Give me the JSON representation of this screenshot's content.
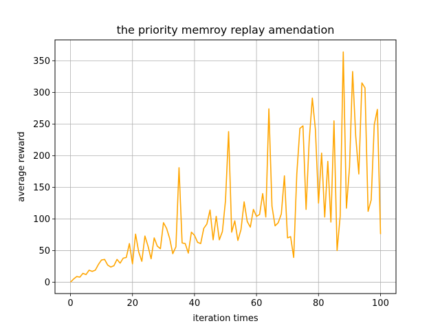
{
  "chart_data": {
    "type": "line",
    "title": "the priority memroy replay amendation",
    "xlabel": "iteration times",
    "ylabel": "average reward",
    "xlim": [
      -5,
      105
    ],
    "ylim": [
      -18,
      383
    ],
    "xticks": [
      0,
      20,
      40,
      60,
      80,
      100
    ],
    "yticks": [
      0,
      50,
      100,
      150,
      200,
      250,
      300,
      350
    ],
    "grid": true,
    "series": [
      {
        "color": "#ffa500",
        "x": [
          0,
          1,
          2,
          3,
          4,
          5,
          6,
          7,
          8,
          9,
          10,
          11,
          12,
          13,
          14,
          15,
          16,
          17,
          18,
          19,
          20,
          21,
          22,
          23,
          24,
          25,
          26,
          27,
          28,
          29,
          30,
          31,
          32,
          33,
          34,
          35,
          36,
          37,
          38,
          39,
          40,
          41,
          42,
          43,
          44,
          45,
          46,
          47,
          48,
          49,
          50,
          51,
          52,
          53,
          54,
          55,
          56,
          57,
          58,
          59,
          60,
          61,
          62,
          63,
          64,
          65,
          66,
          67,
          68,
          69,
          70,
          71,
          72,
          73,
          74,
          75,
          76,
          77,
          78,
          79,
          80,
          81,
          82,
          83,
          84,
          85,
          86,
          87,
          88,
          89,
          90,
          91,
          92,
          93,
          94,
          95,
          96,
          97,
          98,
          99,
          100
        ],
        "y": [
          0,
          5,
          9,
          8,
          14,
          12,
          19,
          17,
          19,
          28,
          35,
          36,
          27,
          24,
          26,
          36,
          30,
          38,
          39,
          61,
          29,
          76,
          48,
          33,
          73,
          57,
          37,
          70,
          57,
          53,
          94,
          85,
          69,
          45,
          56,
          181,
          62,
          61,
          46,
          79,
          74,
          63,
          61,
          85,
          92,
          114,
          67,
          104,
          67,
          80,
          129,
          238,
          79,
          97,
          66,
          83,
          127,
          96,
          87,
          115,
          104,
          107,
          140,
          103,
          274,
          120,
          89,
          94,
          108,
          168,
          70,
          72,
          39,
          171,
          243,
          247,
          115,
          223,
          291,
          241,
          125,
          204,
          103,
          191,
          95,
          255,
          50,
          104,
          364,
          117,
          182,
          333,
          231,
          171,
          315,
          307,
          112,
          130,
          249,
          273,
          76
        ]
      }
    ]
  }
}
